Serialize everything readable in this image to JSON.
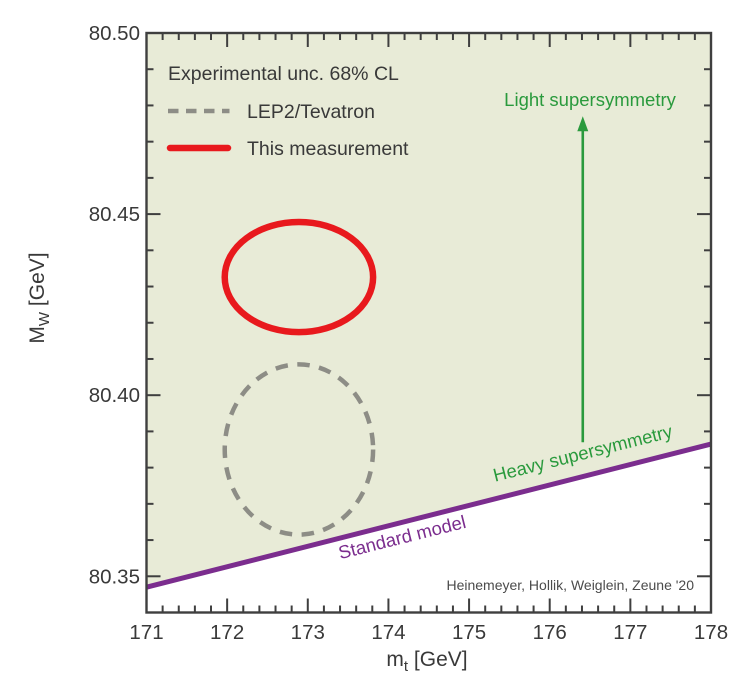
{
  "page": {
    "background": "#ffffff"
  },
  "chart_data": {
    "type": "scatter",
    "title": "",
    "xlabel": {
      "base": "m",
      "sub": "t",
      "unit": " [GeV]"
    },
    "ylabel": {
      "base": "M",
      "sub": "W",
      "unit": " [GeV]"
    },
    "xlim": [
      171,
      178
    ],
    "ylim": [
      80.34,
      80.5
    ],
    "grid": false,
    "frame_color": "#3f3f3f",
    "text_color": "#393939",
    "x_major_ticks": [
      {
        "value": 171,
        "label": "171"
      },
      {
        "value": 172,
        "label": "172"
      },
      {
        "value": 173,
        "label": "173"
      },
      {
        "value": 174,
        "label": "174"
      },
      {
        "value": 175,
        "label": "175"
      },
      {
        "value": 176,
        "label": "176"
      },
      {
        "value": 177,
        "label": "177"
      },
      {
        "value": 178,
        "label": "178"
      }
    ],
    "x_minor_step": 0.2,
    "y_major_ticks": [
      {
        "value": 80.35,
        "label": "80.35"
      },
      {
        "value": 80.4,
        "label": "80.40"
      },
      {
        "value": 80.45,
        "label": "80.45"
      },
      {
        "value": 80.5,
        "label": "80.50"
      }
    ],
    "y_minor_step": 0.01,
    "shaded_region": {
      "name": "supersymmetry-allowed-region",
      "fill": "#e8ebd7",
      "description": "region above standard-model line"
    },
    "sm_line": {
      "label": "Standard model",
      "color": "#7b2d8e",
      "width": 5,
      "points": [
        {
          "mt": 171,
          "mw": 80.347
        },
        {
          "mt": 178,
          "mw": 80.3865
        }
      ],
      "label_pos": {
        "mt": 174.17,
        "mw": 80.3607
      },
      "label_rotation": -14.1
    },
    "ellipses": [
      {
        "name": "lep2-tevatron-ellipse",
        "legend_label": "LEP2/Tevatron",
        "style": "dashed",
        "color": "#8d8d86",
        "stroke_width": 4.5,
        "dash": [
          12.5,
          9.5
        ],
        "center": {
          "mt": 172.89,
          "mw": 80.385
        },
        "rx_gev": 0.92,
        "ry_gev": 0.0235
      },
      {
        "name": "this-measurement-ellipse",
        "legend_label": "This measurement",
        "style": "solid",
        "color": "#e8191d",
        "stroke_width": 6.5,
        "center": {
          "mt": 172.89,
          "mw": 80.4326
        },
        "rx_gev": 0.92,
        "ry_gev": 0.0152
      }
    ],
    "arrow": {
      "name": "light-supersymmetry-arrow",
      "color": "#2a9a3d",
      "mt": 176.41,
      "mw_start": 80.387,
      "mw_end": 80.477,
      "label": "Light supersymmetry",
      "label_pos": {
        "mt": 176.5,
        "mw": 80.4815
      }
    },
    "heavy_susy_label": {
      "text": "Heavy supersymmetry",
      "color": "#2a9a3d",
      "pos": {
        "mt": 176.41,
        "mw": 80.3839
      },
      "rotation": -14.1
    },
    "legend": {
      "position": "top-left",
      "title": "Experimental unc. 68% CL",
      "entries": [
        {
          "label": "LEP2/Tevatron",
          "swatch": "dashed",
          "color": "#8d8d86"
        },
        {
          "label": "This measurement",
          "swatch": "solid",
          "color": "#e8191d"
        }
      ]
    },
    "citation": "Heinemeyer, Hollik, Weiglein, Zeune '20"
  }
}
